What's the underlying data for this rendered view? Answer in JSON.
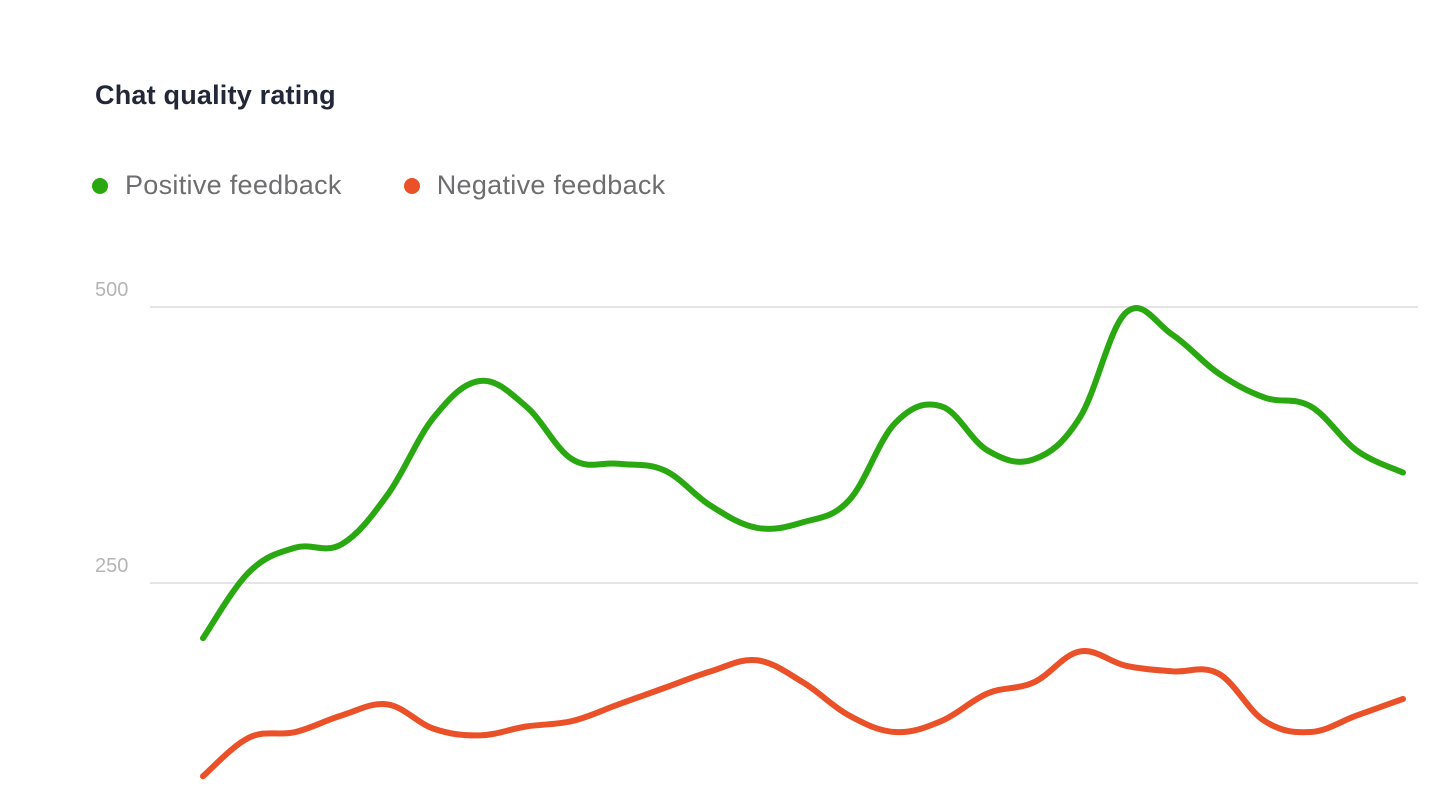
{
  "title": "Chat quality rating",
  "legend": [
    {
      "label": "Positive feedback",
      "color": "#2aa811"
    },
    {
      "label": "Negative feedback",
      "color": "#ea5128"
    }
  ],
  "chart_data": {
    "type": "line",
    "title": "Chat quality rating",
    "x": [
      1,
      2,
      3,
      4,
      5,
      6,
      7,
      8,
      9,
      10,
      11,
      12,
      13,
      14,
      15,
      16,
      17,
      18,
      19,
      20,
      21,
      22,
      23,
      24,
      25,
      26,
      27
    ],
    "series": [
      {
        "name": "Positive feedback",
        "color": "#2aa811",
        "values": [
          200,
          260,
          282,
          285,
          330,
          400,
          433,
          410,
          362,
          358,
          352,
          320,
          300,
          305,
          325,
          395,
          410,
          370,
          362,
          400,
          495,
          475,
          440,
          418,
          410,
          370,
          350
        ]
      },
      {
        "name": "Negative feedback",
        "color": "#ea5128",
        "values": [
          75,
          110,
          115,
          130,
          140,
          118,
          112,
          120,
          125,
          140,
          155,
          170,
          180,
          160,
          130,
          115,
          125,
          150,
          160,
          188,
          175,
          170,
          168,
          125,
          115,
          130,
          145
        ]
      }
    ],
    "yticks": [
      250,
      500
    ],
    "ylim": [
      50,
      530
    ],
    "grid": true,
    "legend_position": "top-left"
  }
}
